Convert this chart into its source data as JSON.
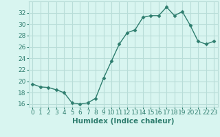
{
  "x": [
    0,
    1,
    2,
    3,
    4,
    5,
    6,
    7,
    8,
    9,
    10,
    11,
    12,
    13,
    14,
    15,
    16,
    17,
    18,
    19,
    20,
    21,
    22,
    23
  ],
  "y": [
    19.5,
    19.0,
    18.9,
    18.5,
    18.0,
    16.2,
    16.0,
    16.2,
    17.0,
    20.5,
    23.5,
    26.5,
    28.5,
    29.0,
    31.2,
    31.5,
    31.5,
    33.0,
    31.5,
    32.2,
    29.8,
    27.0,
    26.5,
    27.0
  ],
  "line_color": "#2e7d6e",
  "marker": "D",
  "marker_size": 2.5,
  "bg_color": "#d8f5f0",
  "grid_color": "#b8ddd8",
  "xlabel": "Humidex (Indice chaleur)",
  "ylim": [
    15.5,
    34
  ],
  "xlim": [
    -0.5,
    23.5
  ],
  "yticks": [
    16,
    18,
    20,
    22,
    24,
    26,
    28,
    30,
    32
  ],
  "xticks": [
    0,
    1,
    2,
    3,
    4,
    5,
    6,
    7,
    8,
    9,
    10,
    11,
    12,
    13,
    14,
    15,
    16,
    17,
    18,
    19,
    20,
    21,
    22,
    23
  ],
  "tick_fontsize": 6.5,
  "xlabel_fontsize": 7.5,
  "linewidth": 1.0
}
